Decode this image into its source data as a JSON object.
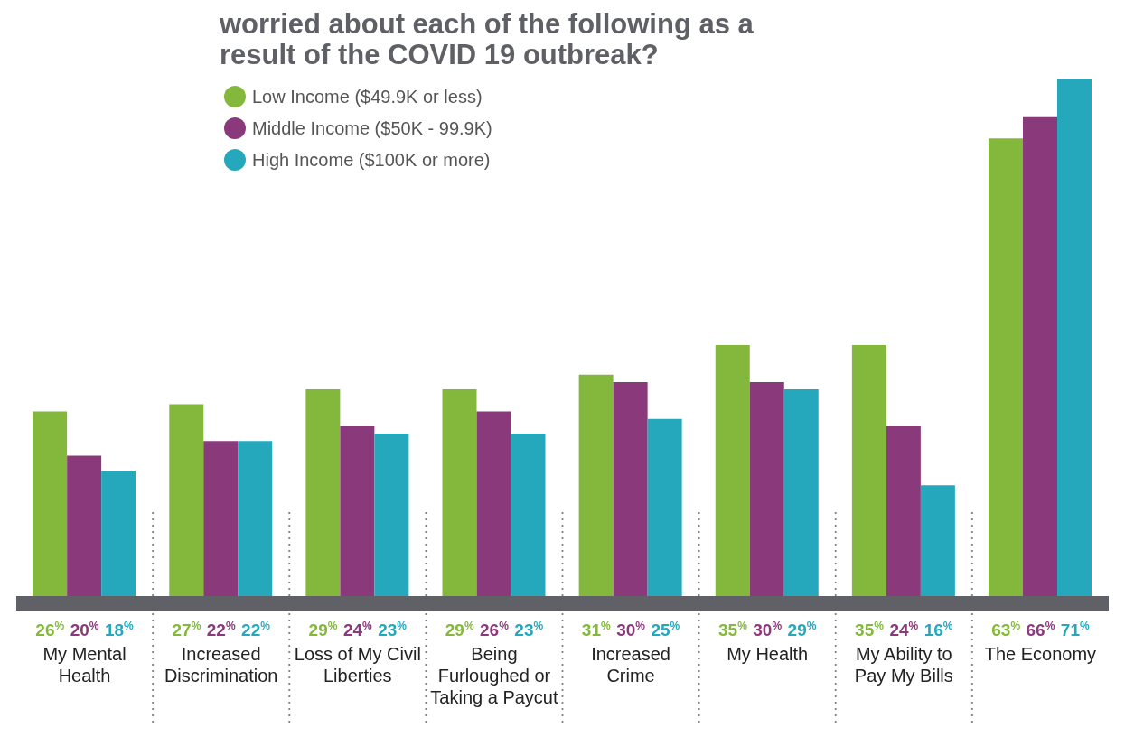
{
  "chart_data": {
    "type": "bar",
    "title": "worried about each of the following as a result of the COVID 19 outbreak?",
    "categories": [
      "My Mental Health",
      "Increased Discrimination",
      "Loss of My Civil Liberties",
      "Being Furloughed or Taking a Paycut",
      "Increased Crime",
      "My Health",
      "My Ability to Pay My Bills",
      "The Economy"
    ],
    "series": [
      {
        "name": "Low Income ($49.9K or less)",
        "color": "#84b83c",
        "values": [
          26,
          27,
          29,
          29,
          31,
          35,
          35,
          63
        ],
        "value_labels": [
          "26$^{%}$",
          "27$^{%}$",
          "29$^{%}$",
          "29$^{%}$",
          "31$^{%}$",
          "35$^{%}$",
          "35$^{%}$",
          "63$^{%}$"
        ]
      },
      {
        "name": "Middle Income ($50K - 99.9K)",
        "color": "#8a3a7a",
        "values": [
          20,
          22,
          24,
          26,
          30,
          30,
          24,
          66
        ],
        "value_labels": [
          "20$^{%}$",
          "22$^{%}$",
          "24$^{%}$",
          "26$^{%}$",
          "30$^{%}$",
          "30$^{%}$",
          "24$^{%}$",
          "66$^{%}$"
        ]
      },
      {
        "name": "High Income ($100K or more)",
        "color": "#25a8bc",
        "values": [
          18,
          22,
          23,
          23,
          25,
          29,
          16,
          71
        ],
        "value_labels": [
          "18$^{%}$",
          "22$^{%}$",
          "23$^{%}$",
          "23$^{%}$",
          "25$^{%}$",
          "29$^{%}$",
          "16$^{%}$",
          "71$^{%}$"
        ]
      }
    ],
    "legend": "top left",
    "grid": false
  }
}
